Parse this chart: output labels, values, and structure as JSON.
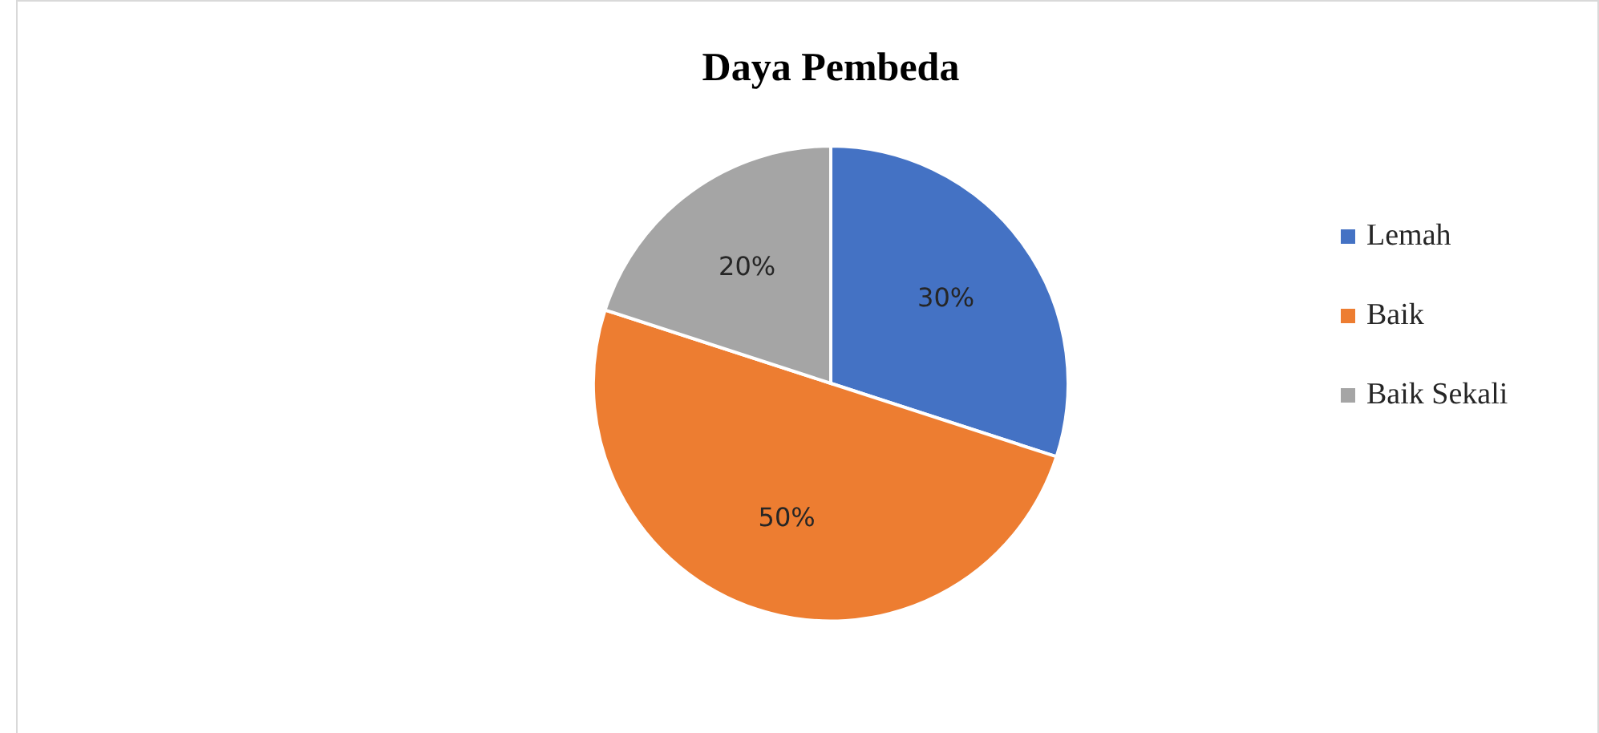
{
  "chart_data": {
    "type": "pie",
    "title": "Daya Pembeda",
    "categories": [
      "Lemah",
      "Baik",
      "Baik Sekali"
    ],
    "values": [
      30,
      50,
      20
    ],
    "colors": [
      "#4472c4",
      "#ed7d31",
      "#a5a5a5"
    ],
    "value_labels": [
      "30%",
      "50%",
      "20%"
    ],
    "legend": "right"
  }
}
